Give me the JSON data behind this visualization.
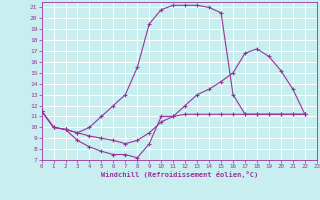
{
  "xlabel": "Windchill (Refroidissement éolien,°C)",
  "bg_color": "#c8eef0",
  "grid_color": "#ffffff",
  "line_color": "#993399",
  "xlim": [
    0,
    23
  ],
  "ylim": [
    7,
    21.5
  ],
  "xticks": [
    0,
    1,
    2,
    3,
    4,
    5,
    6,
    7,
    8,
    9,
    10,
    11,
    12,
    13,
    14,
    15,
    16,
    17,
    18,
    19,
    20,
    21,
    22,
    23
  ],
  "yticks": [
    7,
    8,
    9,
    10,
    11,
    12,
    13,
    14,
    15,
    16,
    17,
    18,
    19,
    20,
    21
  ],
  "series": [
    {
      "x": [
        0,
        1,
        2,
        3,
        4,
        5,
        6,
        7,
        8,
        9,
        10,
        11,
        12,
        13,
        14,
        15,
        16,
        17,
        18,
        19,
        20,
        21,
        22
      ],
      "y": [
        11.5,
        10.0,
        9.8,
        9.5,
        10.0,
        11.0,
        12.0,
        13.0,
        15.5,
        19.5,
        20.8,
        21.2,
        21.2,
        21.2,
        21.0,
        20.5,
        13.0,
        11.2,
        11.2,
        11.2,
        11.2,
        11.2,
        11.2
      ]
    },
    {
      "x": [
        0,
        1,
        2,
        3,
        4,
        5,
        6,
        7,
        8,
        9,
        10,
        11,
        12,
        13,
        14,
        15,
        16,
        17,
        18,
        19,
        20,
        21,
        22
      ],
      "y": [
        11.5,
        10.0,
        9.8,
        8.8,
        8.2,
        7.8,
        7.5,
        7.5,
        7.2,
        8.5,
        11.0,
        11.0,
        11.2,
        11.2,
        11.2,
        11.2,
        11.2,
        11.2,
        11.2,
        11.2,
        11.2,
        11.2,
        11.2
      ]
    },
    {
      "x": [
        0,
        1,
        2,
        3,
        4,
        5,
        6,
        7,
        8,
        9,
        10,
        11,
        12,
        13,
        14,
        15,
        16,
        17,
        18,
        19,
        20,
        21,
        22
      ],
      "y": [
        11.5,
        10.0,
        9.8,
        9.5,
        9.2,
        9.0,
        8.8,
        8.5,
        8.8,
        9.5,
        10.5,
        11.0,
        12.0,
        13.0,
        13.5,
        14.2,
        15.0,
        16.8,
        17.2,
        16.5,
        15.2,
        13.5,
        11.2
      ]
    }
  ]
}
